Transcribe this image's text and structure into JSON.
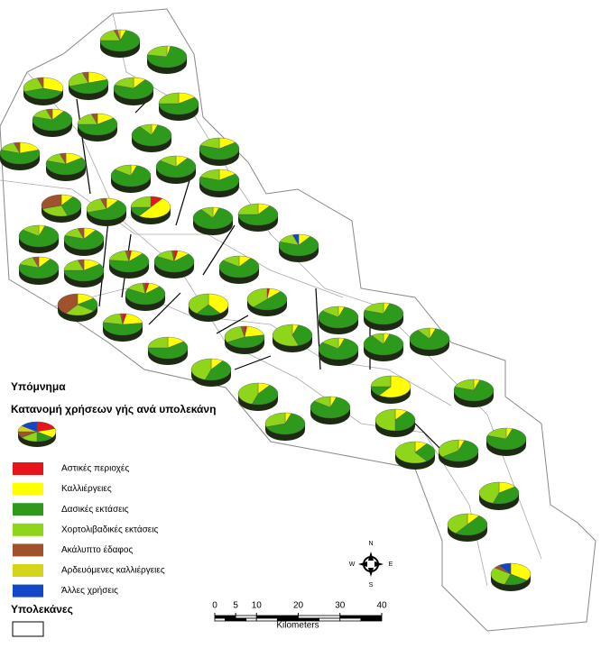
{
  "legend": {
    "title": "Υπόμνημα",
    "subtitle": "Κατανομή χρήσεων γής ανά υπολεκάνη",
    "classes": [
      {
        "label": "Αστικές περιοχές",
        "color": "#e8141c"
      },
      {
        "label": "Καλλιέργειες",
        "color": "#ffff00"
      },
      {
        "label": "Δασικές εκτάσεις",
        "color": "#2e9a1c"
      },
      {
        "label": "Χορτολιβαδικές εκτάσεις",
        "color": "#8fd61a"
      },
      {
        "label": "Ακάλυπτο έδαφος",
        "color": "#a0522d"
      },
      {
        "label": "Αρδευόμενες καλλιέργειες",
        "color": "#d4d41a"
      },
      {
        "label": "Άλλες χρήσεις",
        "color": "#1446c8"
      }
    ],
    "sample": [
      20,
      15,
      15,
      15,
      10,
      10,
      15
    ],
    "basins_label": "Υπολεκάνες"
  },
  "scale_bar": {
    "ticks": [
      0,
      5,
      10,
      20,
      30,
      40
    ],
    "unit": "Kilometers"
  },
  "north_arrow": {
    "n": "N",
    "s": "S",
    "e": "E",
    "w": "W"
  },
  "subbasin_pies": [
    [
      0,
      5,
      70,
      20,
      3,
      2,
      0
    ],
    [
      0,
      3,
      75,
      22,
      0,
      0,
      0
    ],
    [
      0,
      30,
      40,
      25,
      5,
      0,
      0
    ],
    [
      0,
      20,
      50,
      25,
      5,
      0,
      0
    ],
    [
      0,
      10,
      70,
      20,
      0,
      0,
      0
    ],
    [
      0,
      15,
      60,
      25,
      0,
      0,
      0
    ],
    [
      0,
      10,
      70,
      15,
      5,
      0,
      0
    ],
    [
      0,
      15,
      60,
      20,
      5,
      0,
      0
    ],
    [
      0,
      5,
      85,
      10,
      0,
      0,
      0
    ],
    [
      0,
      20,
      60,
      15,
      5,
      0,
      0
    ],
    [
      0,
      15,
      65,
      15,
      5,
      0,
      0
    ],
    [
      0,
      5,
      80,
      15,
      0,
      0,
      0
    ],
    [
      0,
      10,
      75,
      15,
      0,
      0,
      0
    ],
    [
      0,
      15,
      65,
      20,
      0,
      0,
      0
    ],
    [
      0,
      15,
      65,
      20,
      0,
      0,
      0
    ],
    [
      0,
      10,
      35,
      25,
      30,
      0,
      0
    ],
    [
      0,
      10,
      60,
      25,
      5,
      0,
      0
    ],
    [
      10,
      50,
      15,
      25,
      0,
      0,
      0
    ],
    [
      0,
      5,
      85,
      10,
      0,
      0,
      0
    ],
    [
      0,
      10,
      65,
      25,
      0,
      0,
      0
    ],
    [
      0,
      5,
      80,
      15,
      0,
      0,
      0
    ],
    [
      0,
      10,
      70,
      15,
      5,
      0,
      0
    ],
    [
      0,
      10,
      70,
      15,
      0,
      0,
      5
    ],
    [
      0,
      10,
      70,
      15,
      5,
      0,
      0
    ],
    [
      0,
      15,
      60,
      20,
      5,
      0,
      0
    ],
    [
      2,
      10,
      65,
      20,
      3,
      0,
      0
    ],
    [
      3,
      10,
      70,
      15,
      2,
      0,
      0
    ],
    [
      0,
      10,
      75,
      15,
      0,
      0,
      0
    ],
    [
      0,
      15,
      20,
      25,
      40,
      0,
      0
    ],
    [
      3,
      10,
      70,
      15,
      2,
      0,
      0
    ],
    [
      0,
      40,
      20,
      40,
      0,
      0,
      0
    ],
    [
      2,
      10,
      50,
      38,
      0,
      0,
      0
    ],
    [
      3,
      20,
      55,
      20,
      2,
      0,
      0
    ],
    [
      0,
      15,
      60,
      25,
      0,
      0,
      0
    ],
    [
      2,
      20,
      45,
      30,
      3,
      0,
      0
    ],
    [
      0,
      5,
      40,
      55,
      0,
      0,
      0
    ],
    [
      0,
      5,
      80,
      15,
      0,
      0,
      0
    ],
    [
      0,
      5,
      75,
      20,
      0,
      0,
      0
    ],
    [
      0,
      5,
      80,
      15,
      0,
      0,
      0
    ],
    [
      0,
      5,
      85,
      10,
      0,
      0,
      0
    ],
    [
      0,
      5,
      85,
      10,
      0,
      0,
      0
    ],
    [
      0,
      10,
      45,
      45,
      0,
      0,
      0
    ],
    [
      0,
      10,
      45,
      45,
      0,
      0,
      0
    ],
    [
      0,
      5,
      80,
      15,
      0,
      0,
      0
    ],
    [
      0,
      60,
      15,
      25,
      0,
      0,
      0
    ],
    [
      0,
      5,
      75,
      20,
      0,
      0,
      0
    ],
    [
      0,
      5,
      65,
      30,
      0,
      0,
      0
    ],
    [
      0,
      10,
      40,
      50,
      0,
      0,
      0
    ],
    [
      0,
      5,
      75,
      20,
      0,
      0,
      0
    ],
    [
      0,
      10,
      30,
      60,
      0,
      0,
      0
    ],
    [
      0,
      5,
      60,
      35,
      0,
      0,
      0
    ],
    [
      0,
      15,
      40,
      45,
      0,
      0,
      0
    ],
    [
      0,
      10,
      50,
      40,
      0,
      0,
      0
    ],
    [
      0,
      35,
      20,
      30,
      5,
      0,
      10
    ]
  ]
}
